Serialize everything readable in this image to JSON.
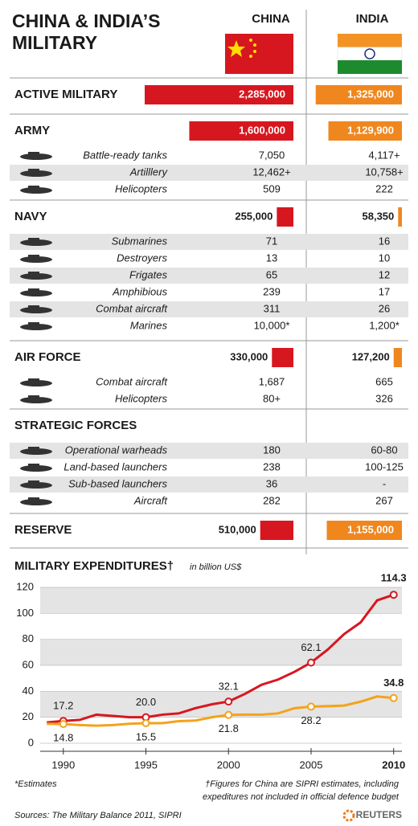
{
  "header": {
    "title_lines": [
      "CHINA & INDIA’S",
      "MILITARY"
    ],
    "columns": [
      "CHINA",
      "INDIA"
    ]
  },
  "sections": [
    {
      "name": "ACTIVE MILITARY",
      "china": {
        "value": 2285000,
        "label": "2,285,000"
      },
      "india": {
        "value": 1325000,
        "label": "1,325,000"
      },
      "rows": []
    },
    {
      "name": "ARMY",
      "china": {
        "value": 1600000,
        "label": "1,600,000"
      },
      "india": {
        "value": 1129900,
        "label": "1,129,900"
      },
      "rows": [
        {
          "label": "Battle-ready tanks",
          "china": "7,050",
          "india": "4,117+"
        },
        {
          "label": "Artilllery",
          "china": "12,462+",
          "india": "10,758+"
        },
        {
          "label": "Helicopters",
          "china": 509,
          "india": 222
        }
      ]
    },
    {
      "name": "NAVY",
      "china": {
        "value": 255000,
        "label": "255,000"
      },
      "india": {
        "value": 58350,
        "label": "58,350"
      },
      "rows": [
        {
          "label": "Submarines",
          "china": 71,
          "india": 16
        },
        {
          "label": "Destroyers",
          "china": 13,
          "india": 10
        },
        {
          "label": "Frigates",
          "china": 65,
          "india": 12
        },
        {
          "label": "Amphibious",
          "china": 239,
          "india": 17
        },
        {
          "label": "Combat aircraft",
          "china": 311,
          "india": 26
        },
        {
          "label": "Marines",
          "china": "10,000*",
          "india": "1,200*"
        }
      ]
    },
    {
      "name": "AIR FORCE",
      "china": {
        "value": 330000,
        "label": "330,000"
      },
      "india": {
        "value": 127200,
        "label": "127,200"
      },
      "rows": [
        {
          "label": "Combat aircraft",
          "china": "1,687",
          "india": 665
        },
        {
          "label": "Helicopters",
          "china": "80+",
          "india": 326
        }
      ]
    },
    {
      "name": "STRATEGIC FORCES",
      "rows": [
        {
          "label": "Operational warheads",
          "china": 180,
          "india": "60-80"
        },
        {
          "label": "Land-based launchers",
          "china": 238,
          "india": "100-125"
        },
        {
          "label": "Sub-based launchers",
          "china": 36,
          "india": "-"
        },
        {
          "label": "Aircraft",
          "china": 282,
          "india": 267
        }
      ]
    },
    {
      "name": "RESERVE",
      "china": {
        "value": 510000,
        "label": "510,000"
      },
      "india": {
        "value": 1155000,
        "label": "1,155,000"
      },
      "rows": []
    }
  ],
  "chart_data": {
    "type": "line",
    "title": "MILITARY EXPENDITURES†",
    "subtitle": "in billion US$",
    "x": [
      1989,
      1990,
      1991,
      1992,
      1993,
      1994,
      1995,
      1996,
      1997,
      1998,
      1999,
      2000,
      2001,
      2002,
      2003,
      2004,
      2005,
      2006,
      2007,
      2008,
      2009,
      2010
    ],
    "xlim": [
      1988.6,
      2010.5
    ],
    "xticks": [
      1990,
      1995,
      2000,
      2005,
      2010
    ],
    "ylim": [
      0,
      120
    ],
    "yticks": [
      0,
      20,
      40,
      60,
      80,
      100,
      120
    ],
    "series": [
      {
        "color": "#d7171f",
        "values": [
          16,
          17.2,
          18,
          22,
          21,
          20,
          20.0,
          22,
          23,
          27,
          30,
          32.1,
          38,
          45,
          49,
          55,
          62.1,
          72,
          84,
          93,
          110,
          114.3
        ],
        "value_labels": [
          null,
          "17.2",
          null,
          null,
          null,
          null,
          "20.0",
          null,
          null,
          null,
          null,
          "32.1",
          null,
          null,
          null,
          null,
          "62.1",
          null,
          null,
          null,
          null,
          "114.3"
        ]
      },
      {
        "color": "#f5a21a",
        "values": [
          15,
          14.8,
          14,
          13.5,
          14,
          15,
          15.5,
          15.5,
          17,
          17.5,
          20,
          21.8,
          22,
          22,
          23,
          27,
          28.2,
          28.5,
          29,
          32,
          36,
          34.8
        ],
        "value_labels": [
          null,
          "14.8",
          null,
          null,
          null,
          null,
          "15.5",
          null,
          null,
          null,
          null,
          "21.8",
          null,
          null,
          null,
          null,
          "28.2",
          null,
          null,
          null,
          null,
          "34.8"
        ]
      }
    ],
    "notes": [
      "*Estimates",
      "†Figures for China are SIPRI estimates, including",
      "expeditures not included in official defence budget"
    ],
    "source": "Sources: The Military Balance 2011, SIPRI",
    "credit": "REUTERS"
  }
}
